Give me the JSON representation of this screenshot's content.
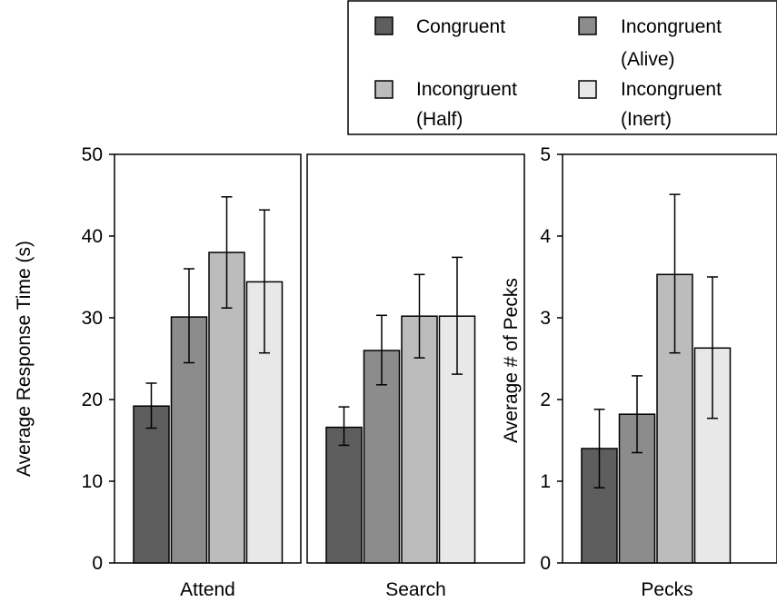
{
  "chart_data": [
    {
      "type": "bar",
      "panel": "Attend",
      "categories": [
        "Congruent",
        "Incongruent (Alive)",
        "Incongruent (Half)",
        "Incongruent (Inert)"
      ],
      "values": [
        19.2,
        30.1,
        38.0,
        34.4
      ],
      "error_low": [
        16.5,
        24.5,
        31.2,
        25.7
      ],
      "error_high": [
        22.0,
        36.0,
        44.8,
        43.2
      ],
      "xlabel": "Attend",
      "ylabel": "Average Response Time (s)",
      "ylim": [
        0,
        50
      ],
      "yticks": [
        0,
        10,
        20,
        30,
        40,
        50
      ]
    },
    {
      "type": "bar",
      "panel": "Search",
      "categories": [
        "Congruent",
        "Incongruent (Alive)",
        "Incongruent (Half)",
        "Incongruent (Inert)"
      ],
      "values": [
        16.6,
        26.0,
        30.2,
        30.2
      ],
      "error_low": [
        14.4,
        21.8,
        25.1,
        23.1
      ],
      "error_high": [
        19.1,
        30.3,
        35.3,
        37.4
      ],
      "xlabel": "Search",
      "ylabel": "Average Response Time (s)",
      "ylim": [
        0,
        50
      ],
      "yticks": [
        0,
        10,
        20,
        30,
        40,
        50
      ]
    },
    {
      "type": "bar",
      "panel": "Pecks",
      "categories": [
        "Congruent",
        "Incongruent (Alive)",
        "Incongruent (Half)",
        "Incongruent (Inert)"
      ],
      "values": [
        1.4,
        1.82,
        3.53,
        2.63
      ],
      "error_low": [
        0.92,
        1.35,
        2.57,
        1.77
      ],
      "error_high": [
        1.88,
        2.29,
        4.51,
        3.5
      ],
      "xlabel": "Pecks",
      "ylabel": "Average # of Pecks",
      "ylim": [
        0,
        5
      ],
      "yticks": [
        0,
        1,
        2,
        3,
        4,
        5
      ]
    }
  ],
  "legend": {
    "entries": [
      {
        "line1": "Congruent",
        "line2": "",
        "color": "#5e5e5e"
      },
      {
        "line1": "Incongruent",
        "line2": "(Alive)",
        "color": "#8c8c8c"
      },
      {
        "line1": "Incongruent",
        "line2": "(Half)",
        "color": "#bcbcbc"
      },
      {
        "line1": "Incongruent",
        "line2": "(Inert)",
        "color": "#e8e8e8"
      }
    ]
  },
  "colors": {
    "congruent": "#5e5e5e",
    "alive": "#8c8c8c",
    "half": "#bcbcbc",
    "inert": "#e8e8e8",
    "outline": "#000000"
  }
}
